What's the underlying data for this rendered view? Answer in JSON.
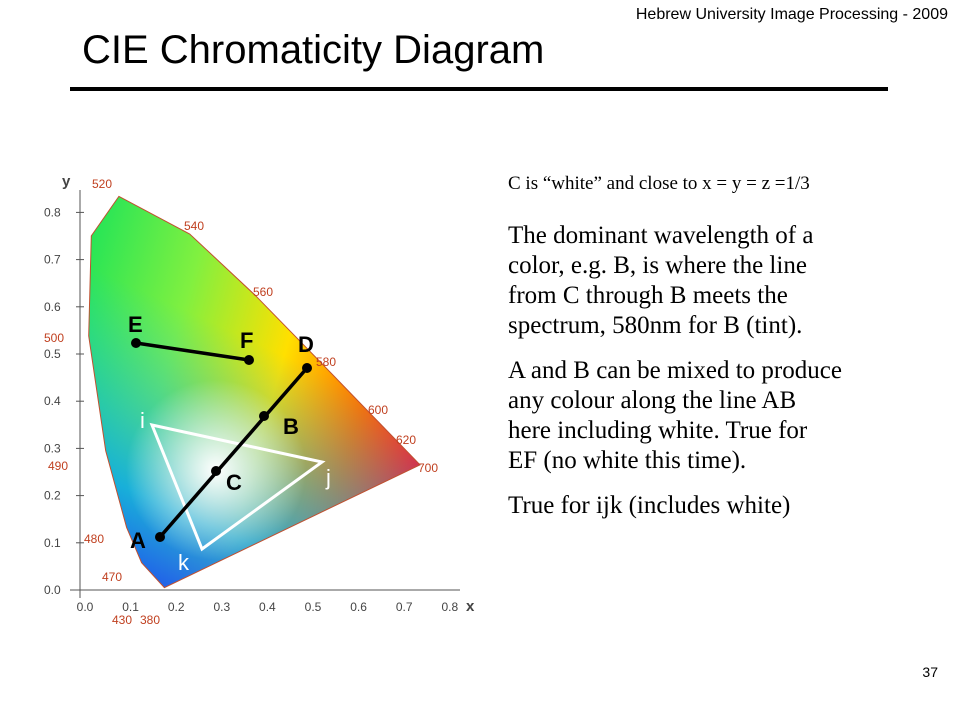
{
  "header": {
    "course": "Hebrew University Image Processing - 2009",
    "title": "CIE Chromaticity Diagram",
    "page": "37"
  },
  "diagram": {
    "y_axis": "y",
    "x_axis": "x",
    "xticks": [
      "0.0",
      "0.1",
      "0.2",
      "0.3",
      "0.4",
      "0.5",
      "0.6",
      "0.7",
      "0.8"
    ],
    "yticks": [
      "0.8",
      "0.7",
      "0.6",
      "0.5",
      "0.4",
      "0.3",
      "0.2",
      "0.1",
      "0.0"
    ],
    "wavelengths": [
      "520",
      "540",
      "560",
      "580",
      "600",
      "620",
      "700",
      "500",
      "490",
      "480",
      "470",
      "430",
      "380"
    ],
    "points": [
      "E",
      "F",
      "D",
      "B",
      "C",
      "A"
    ],
    "triangle": [
      "i",
      "j",
      "k"
    ]
  },
  "text": {
    "intro": "C is “white” and close to x = y = z =1/3",
    "paragraphs": [
      [
        "The dominant wavelength of a",
        "color, e.g. B, is where the line",
        "from C through B meets the",
        "spectrum, 580nm for B (tint)."
      ],
      [
        "A and B can be mixed to produce",
        "any colour along the line AB",
        "here including white.  True for",
        "EF (no white this time)."
      ],
      [
        "True for ijk (includes white)"
      ]
    ]
  }
}
